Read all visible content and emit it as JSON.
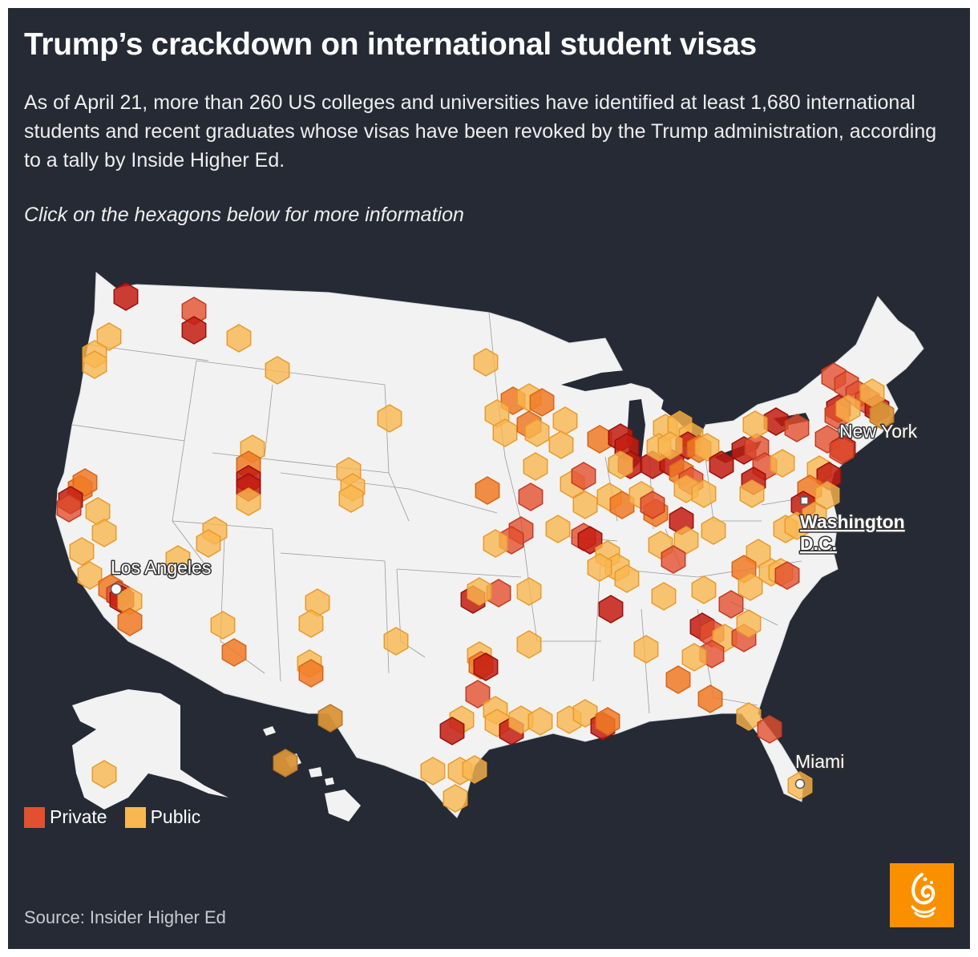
{
  "title": "Trump’s crackdown on international student visas",
  "subtitle": "As of April 21, more than 260 US colleges and universities have identified at least 1,680 international students and recent graduates whose visas have been revoked by the Trump administration, according to a tally by Inside Higher Ed.",
  "hint": "Click on the hexagons below for more information",
  "cities": {
    "new_york": "New York",
    "washington_line1": "Washington",
    "washington_line2": "D.C.",
    "los_angeles": "Los Angeles",
    "miami": "Miami"
  },
  "legend": [
    {
      "label": "Private",
      "color": "#e2502f"
    },
    {
      "label": "Public",
      "color": "#f9b74f"
    }
  ],
  "source": "Source: Insider Higher Ed",
  "colors": {
    "background": "#252a35",
    "land": "#f2f2f2",
    "private": "#e2502f",
    "public": "#f9b74f",
    "logo": "#fa9000"
  },
  "logo_icon": "al-jazeera-logo-icon"
}
